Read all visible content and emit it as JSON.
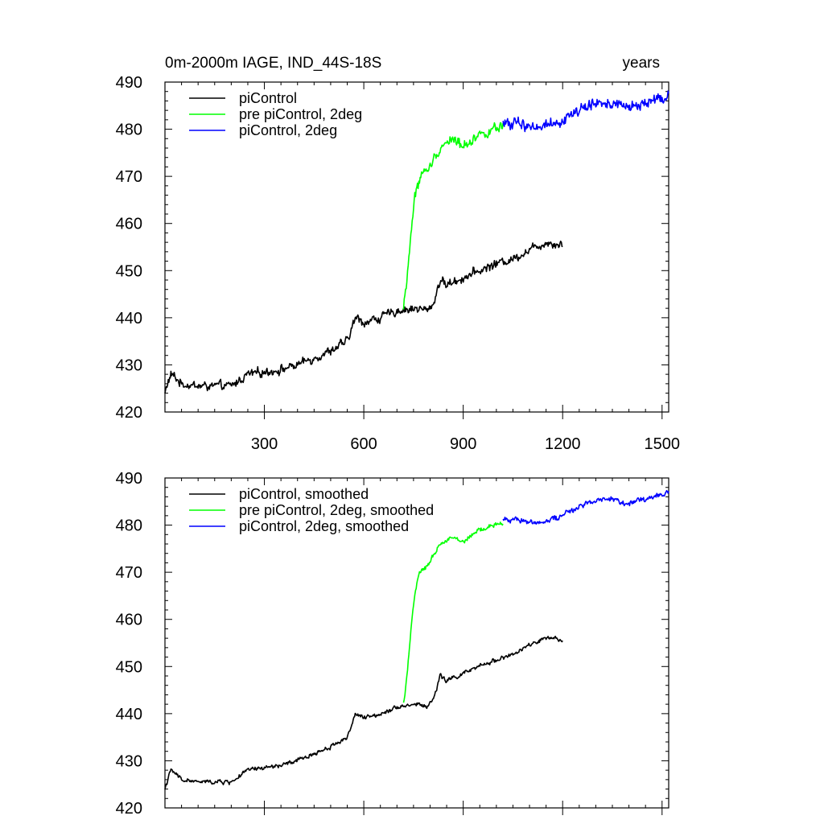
{
  "chart_data": [
    {
      "type": "line",
      "title_left": "0m-2000m IAGE, IND_44S-18S",
      "title_right": "years",
      "xlabel": "",
      "ylabel": "",
      "xlim": [
        0,
        1520
      ],
      "ylim": [
        420,
        490
      ],
      "x_ticks": [
        300,
        600,
        900,
        1200,
        1500
      ],
      "x_tick_labels": [
        "300",
        "600",
        "900",
        "1200",
        "1500"
      ],
      "y_ticks": [
        420,
        430,
        440,
        450,
        460,
        470,
        480,
        490
      ],
      "y_tick_labels": [
        "420",
        "430",
        "440",
        "450",
        "460",
        "470",
        "480",
        "490"
      ],
      "grid": false,
      "legend_position": "top-left",
      "series": [
        {
          "name": "piControl",
          "color": "#000000",
          "noise": 1.1,
          "x": [
            0,
            10,
            20,
            50,
            100,
            150,
            200,
            250,
            300,
            350,
            400,
            450,
            500,
            550,
            575,
            600,
            650,
            700,
            760,
            790,
            810,
            830,
            850,
            900,
            950,
            1000,
            1050,
            1100,
            1150,
            1200
          ],
          "values": [
            424,
            426.5,
            428,
            426,
            425.5,
            425.5,
            425.5,
            428,
            428.5,
            429,
            430,
            431.5,
            433,
            435,
            440,
            439,
            440,
            441.5,
            442,
            441.5,
            443,
            448,
            447,
            448.5,
            450,
            451.5,
            452.5,
            454.5,
            456,
            455.5
          ]
        },
        {
          "name": "pre piControl, 2deg",
          "color": "#00ff00",
          "noise": 1.3,
          "x": [
            720,
            730,
            745,
            755,
            770,
            800,
            830,
            860,
            900,
            950,
            1020
          ],
          "values": [
            442,
            448,
            460,
            466,
            470,
            472,
            476,
            478,
            476.5,
            479,
            480.5
          ]
        },
        {
          "name": "piControl, 2deg",
          "color": "#0000ff",
          "noise": 1.4,
          "x": [
            1020,
            1060,
            1100,
            1150,
            1200,
            1250,
            1300,
            1350,
            1400,
            1450,
            1520
          ],
          "values": [
            481,
            481.5,
            480.5,
            481,
            482,
            484,
            485.5,
            485.5,
            484.5,
            485.5,
            487
          ]
        }
      ]
    },
    {
      "type": "line",
      "xlabel": "",
      "ylabel": "",
      "xlim": [
        0,
        1520
      ],
      "ylim": [
        420,
        490
      ],
      "x_ticks": [
        300,
        600,
        900,
        1200,
        1500
      ],
      "y_ticks": [
        420,
        430,
        440,
        450,
        460,
        470,
        480,
        490
      ],
      "y_tick_labels": [
        "420",
        "430",
        "440",
        "450",
        "460",
        "470",
        "480",
        "490"
      ],
      "grid": false,
      "legend_position": "top-left",
      "series": [
        {
          "name": "piControl, smoothed",
          "color": "#000000",
          "noise": 0.55,
          "x": [
            0,
            10,
            20,
            50,
            100,
            150,
            200,
            250,
            300,
            350,
            400,
            450,
            500,
            550,
            575,
            600,
            650,
            700,
            760,
            790,
            810,
            830,
            850,
            900,
            950,
            1000,
            1050,
            1100,
            1150,
            1200
          ],
          "values": [
            424,
            426.5,
            428,
            426,
            425.5,
            425.5,
            425.5,
            428,
            428.5,
            429,
            430,
            431.5,
            433,
            435,
            440,
            439,
            440,
            441.5,
            442,
            441.5,
            443,
            448,
            447,
            448.5,
            450,
            451.5,
            452.5,
            454.5,
            456,
            455.5
          ]
        },
        {
          "name": "pre piControl, 2deg, smoothed",
          "color": "#00ff00",
          "noise": 0.6,
          "x": [
            720,
            730,
            745,
            755,
            770,
            800,
            830,
            860,
            900,
            950,
            1020
          ],
          "values": [
            442,
            448,
            460,
            466,
            470,
            472,
            476,
            477.5,
            476.5,
            479,
            480.5
          ]
        },
        {
          "name": "piControl, 2deg, smoothed",
          "color": "#0000ff",
          "noise": 0.7,
          "x": [
            1020,
            1060,
            1100,
            1150,
            1200,
            1250,
            1300,
            1350,
            1400,
            1450,
            1520
          ],
          "values": [
            481,
            481.5,
            480.5,
            481,
            482,
            484,
            485.5,
            485.5,
            484.5,
            485.5,
            487
          ]
        }
      ]
    }
  ]
}
